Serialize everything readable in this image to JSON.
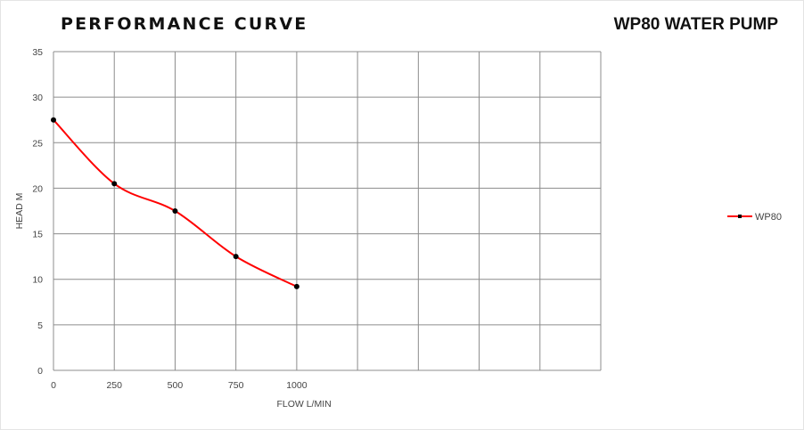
{
  "header": {
    "title": "PERFORMANCE CURVE",
    "product": "WP80 WATER PUMP"
  },
  "chart_data": {
    "type": "line",
    "x": [
      0,
      250,
      500,
      750,
      1000
    ],
    "series": [
      {
        "name": "WP80",
        "values": [
          27.5,
          20.5,
          17.5,
          12.5,
          9.2
        ],
        "color": "#ff0000",
        "marker_color": "#000000"
      }
    ],
    "xlabel": "FLOW L/MIN",
    "ylabel": "HEAD M",
    "xlim": [
      0,
      2250
    ],
    "ylim": [
      0,
      35
    ],
    "x_tick_labels": [
      "0",
      "250",
      "500",
      "750",
      "1000"
    ],
    "y_tick_labels": [
      "0",
      "5",
      "10",
      "15",
      "20",
      "25",
      "30",
      "35"
    ],
    "grid": true,
    "legend": "right",
    "smooth": true
  }
}
